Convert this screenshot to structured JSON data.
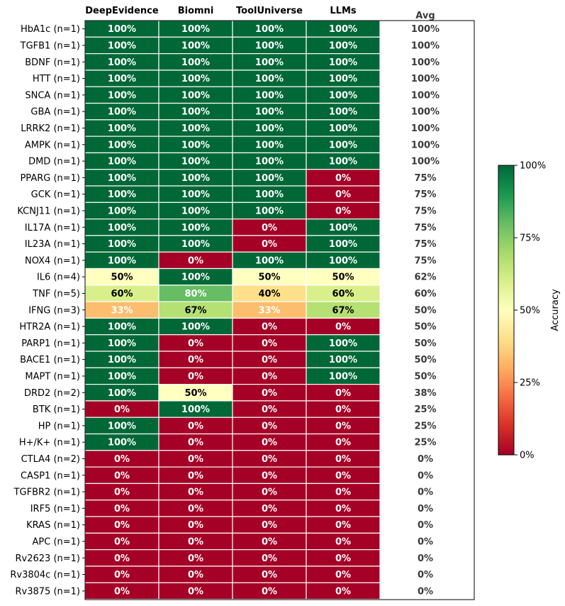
{
  "chart_data": {
    "type": "heatmap",
    "columns": [
      "DeepEvidence",
      "Biomni",
      "ToolUniverse",
      "LLMs"
    ],
    "avg_label": "Avg",
    "rows": [
      "HbA1c (n=1)",
      "TGFB1 (n=1)",
      "BDNF (n=1)",
      "HTT (n=1)",
      "SNCA (n=1)",
      "GBA (n=1)",
      "LRRK2 (n=1)",
      "AMPK (n=1)",
      "DMD (n=1)",
      "PPARG (n=1)",
      "GCK (n=1)",
      "KCNJ11 (n=1)",
      "IL17A (n=1)",
      "IL23A (n=1)",
      "NOX4 (n=1)",
      "IL6 (n=4)",
      "TNF (n=5)",
      "IFNG (n=3)",
      "HTR2A (n=1)",
      "PARP1 (n=1)",
      "BACE1 (n=1)",
      "MAPT (n=1)",
      "DRD2 (n=2)",
      "BTK (n=1)",
      "HP (n=1)",
      "H+/K+ (n=1)",
      "CTLA4 (n=2)",
      "CASP1 (n=1)",
      "TGFBR2 (n=1)",
      "IRF5 (n=1)",
      "KRAS (n=1)",
      "APC (n=1)",
      "Rv2623 (n=1)",
      "Rv3804c (n=1)",
      "Rv3875 (n=1)"
    ],
    "values": [
      [
        100,
        100,
        100,
        100
      ],
      [
        100,
        100,
        100,
        100
      ],
      [
        100,
        100,
        100,
        100
      ],
      [
        100,
        100,
        100,
        100
      ],
      [
        100,
        100,
        100,
        100
      ],
      [
        100,
        100,
        100,
        100
      ],
      [
        100,
        100,
        100,
        100
      ],
      [
        100,
        100,
        100,
        100
      ],
      [
        100,
        100,
        100,
        100
      ],
      [
        100,
        100,
        100,
        0
      ],
      [
        100,
        100,
        100,
        0
      ],
      [
        100,
        100,
        100,
        0
      ],
      [
        100,
        100,
        0,
        100
      ],
      [
        100,
        100,
        0,
        100
      ],
      [
        100,
        0,
        100,
        100
      ],
      [
        50,
        100,
        50,
        50
      ],
      [
        60,
        80,
        40,
        60
      ],
      [
        33,
        67,
        33,
        67
      ],
      [
        100,
        100,
        0,
        0
      ],
      [
        100,
        0,
        0,
        100
      ],
      [
        100,
        0,
        0,
        100
      ],
      [
        100,
        0,
        0,
        100
      ],
      [
        100,
        50,
        0,
        0
      ],
      [
        0,
        100,
        0,
        0
      ],
      [
        100,
        0,
        0,
        0
      ],
      [
        100,
        0,
        0,
        0
      ],
      [
        0,
        0,
        0,
        0
      ],
      [
        0,
        0,
        0,
        0
      ],
      [
        0,
        0,
        0,
        0
      ],
      [
        0,
        0,
        0,
        0
      ],
      [
        0,
        0,
        0,
        0
      ],
      [
        0,
        0,
        0,
        0
      ],
      [
        0,
        0,
        0,
        0
      ],
      [
        0,
        0,
        0,
        0
      ],
      [
        0,
        0,
        0,
        0
      ]
    ],
    "avg": [
      100,
      100,
      100,
      100,
      100,
      100,
      100,
      100,
      100,
      75,
      75,
      75,
      75,
      75,
      75,
      62,
      60,
      50,
      50,
      50,
      50,
      50,
      38,
      25,
      25,
      25,
      0,
      0,
      0,
      0,
      0,
      0,
      0,
      0,
      0
    ],
    "colorbar": {
      "label": "Accuracy",
      "ticks": [
        "0%",
        "25%",
        "50%",
        "75%",
        "100%"
      ],
      "colormap": "RdYlGn",
      "range": [
        0,
        100
      ]
    }
  }
}
